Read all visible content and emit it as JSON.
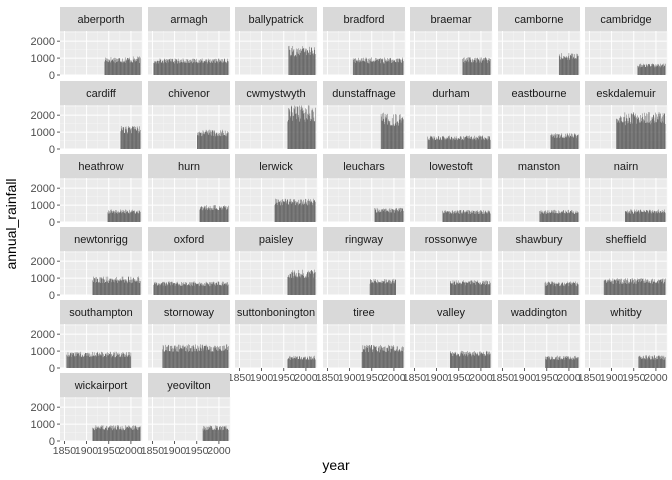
{
  "chart_data": {
    "type": "bar",
    "layout": "facet_wrap",
    "xlabel": "year",
    "ylabel": "annual_rainfall",
    "xlim": [
      1840,
      2025
    ],
    "ylim": [
      0,
      2600
    ],
    "xticks": [
      1850,
      1900,
      1950,
      2000
    ],
    "xtick_labels": [
      "1850",
      "1900",
      "1950",
      "2000"
    ],
    "yticks": [
      0,
      1000,
      2000
    ],
    "ytick_labels": [
      "0",
      "1000",
      "2000"
    ],
    "grid": true,
    "legend": "none",
    "panel_background": "#ebebeb",
    "strip_background": "#d9d9d9",
    "bar_color": "#4d4d4d",
    "series": [
      {
        "name": "aberporth",
        "start": 1941,
        "end": 2021,
        "mean": 900,
        "var": 200
      },
      {
        "name": "armagh",
        "start": 1853,
        "end": 2021,
        "mean": 830,
        "var": 150
      },
      {
        "name": "ballypatrick",
        "start": 1961,
        "end": 2021,
        "mean": 1400,
        "var": 320
      },
      {
        "name": "bradford",
        "start": 1908,
        "end": 2021,
        "mean": 860,
        "var": 180
      },
      {
        "name": "braemar",
        "start": 1959,
        "end": 2021,
        "mean": 880,
        "var": 180
      },
      {
        "name": "camborne",
        "start": 1978,
        "end": 2021,
        "mean": 1100,
        "var": 220
      },
      {
        "name": "cambridge",
        "start": 1959,
        "end": 2021,
        "mean": 560,
        "var": 120
      },
      {
        "name": "cardiff",
        "start": 1977,
        "end": 2021,
        "mean": 1150,
        "var": 240
      },
      {
        "name": "chivenor",
        "start": 1951,
        "end": 2021,
        "mean": 950,
        "var": 200
      },
      {
        "name": "cwmystwyth",
        "start": 1959,
        "end": 2021,
        "mean": 2100,
        "var": 500
      },
      {
        "name": "dunstaffnage",
        "start": 1971,
        "end": 2021,
        "mean": 1750,
        "var": 400
      },
      {
        "name": "durham",
        "start": 1880,
        "end": 2021,
        "mean": 660,
        "var": 140
      },
      {
        "name": "eastbourne",
        "start": 1959,
        "end": 2021,
        "mean": 780,
        "var": 160
      },
      {
        "name": "eskdalemuir",
        "start": 1911,
        "end": 2021,
        "mean": 1800,
        "var": 400
      },
      {
        "name": "heathrow",
        "start": 1948,
        "end": 2021,
        "mean": 610,
        "var": 130
      },
      {
        "name": "hurn",
        "start": 1957,
        "end": 2021,
        "mean": 830,
        "var": 180
      },
      {
        "name": "lerwick",
        "start": 1930,
        "end": 2021,
        "mean": 1180,
        "var": 200
      },
      {
        "name": "leuchars",
        "start": 1957,
        "end": 2021,
        "mean": 690,
        "var": 150
      },
      {
        "name": "lowestoft",
        "start": 1914,
        "end": 2021,
        "mean": 590,
        "var": 120
      },
      {
        "name": "manston",
        "start": 1934,
        "end": 2021,
        "mean": 600,
        "var": 130
      },
      {
        "name": "nairn",
        "start": 1931,
        "end": 2021,
        "mean": 620,
        "var": 130
      },
      {
        "name": "newtonrigg",
        "start": 1914,
        "end": 2021,
        "mean": 900,
        "var": 200
      },
      {
        "name": "oxford",
        "start": 1853,
        "end": 2021,
        "mean": 660,
        "var": 140
      },
      {
        "name": "paisley",
        "start": 1959,
        "end": 2021,
        "mean": 1250,
        "var": 250
      },
      {
        "name": "ringway",
        "start": 1946,
        "end": 2004,
        "mean": 810,
        "var": 150
      },
      {
        "name": "rossonwye",
        "start": 1931,
        "end": 2021,
        "mean": 720,
        "var": 150
      },
      {
        "name": "shawbury",
        "start": 1946,
        "end": 2021,
        "mean": 660,
        "var": 140
      },
      {
        "name": "sheffield",
        "start": 1883,
        "end": 2021,
        "mean": 820,
        "var": 170
      },
      {
        "name": "southampton",
        "start": 1855,
        "end": 2000,
        "mean": 800,
        "var": 170
      },
      {
        "name": "stornoway",
        "start": 1873,
        "end": 2021,
        "mean": 1180,
        "var": 230
      },
      {
        "name": "suttonbonington",
        "start": 1959,
        "end": 2021,
        "mean": 600,
        "var": 130
      },
      {
        "name": "tiree",
        "start": 1928,
        "end": 2021,
        "mean": 1150,
        "var": 230
      },
      {
        "name": "valley",
        "start": 1931,
        "end": 2021,
        "mean": 850,
        "var": 170
      },
      {
        "name": "waddington",
        "start": 1947,
        "end": 2021,
        "mean": 600,
        "var": 130
      },
      {
        "name": "whitby",
        "start": 1961,
        "end": 2021,
        "mean": 620,
        "var": 140
      },
      {
        "name": "wickairport",
        "start": 1914,
        "end": 2021,
        "mean": 780,
        "var": 150
      },
      {
        "name": "yeovilton",
        "start": 1964,
        "end": 2021,
        "mean": 770,
        "var": 150
      }
    ]
  }
}
